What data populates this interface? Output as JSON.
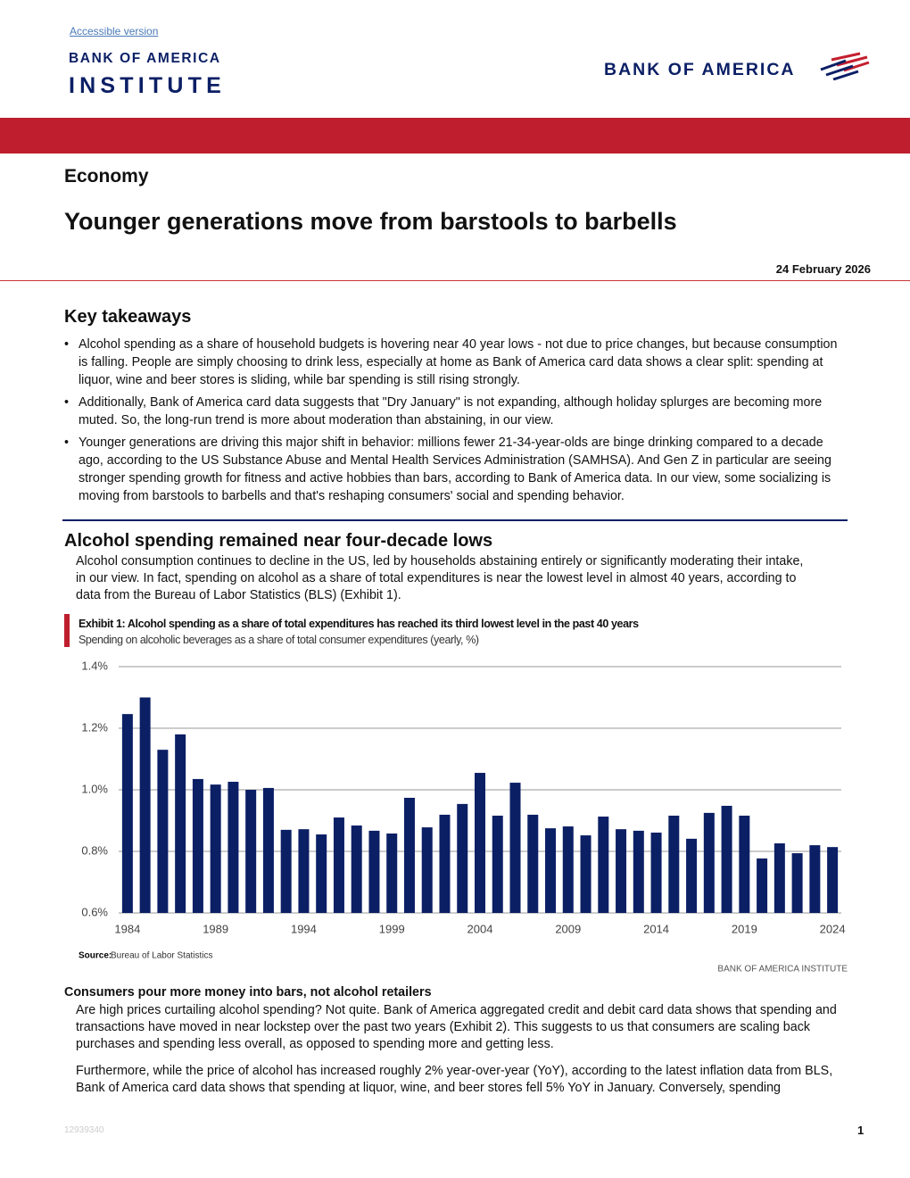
{
  "header": {
    "link": "Accessible version",
    "institute_logo": [
      "BANK OF AMERICA",
      "INSTITUTE"
    ],
    "brand": "BANK OF AMERICA"
  },
  "section": "Economy",
  "title": "Younger generations move from barstools to barbells",
  "date": "24 February 2026",
  "takeaways": {
    "heading": "Key takeaways",
    "items": [
      "Alcohol spending as a share of household budgets is hovering near 40 year lows - not due to price changes, but because consumption is falling. People are simply choosing to drink less, especially at home as Bank of America card data shows a clear split: spending at liquor, wine and beer stores is sliding, while bar spending is still rising strongly.",
      "Additionally, Bank of America card data suggests that \"Dry January\" is not expanding, although holiday splurges are becoming more muted. So, the long-run trend is more about moderation than abstaining, in our view.",
      "Younger generations are driving this major shift in behavior: millions fewer 21-34-year-olds are binge drinking compared to a decade ago, according to the US Substance Abuse and Mental Health Services Administration (SAMHSA). And Gen Z in particular are seeing stronger spending growth for fitness and active hobbies than bars, according to Bank of America data. In our view, some socializing is moving from barstools to barbells and that's reshaping consumers' social and spending behavior."
    ]
  },
  "section1": {
    "heading": "Alcohol spending remained near four-decade lows",
    "body": "Alcohol consumption continues to decline in the US, led by households abstaining entirely or significantly moderating their intake, in our view. In fact, spending on alcohol as a share of total expenditures is near the lowest level in almost 40 years, according to data from the Bureau of Labor Statistics (BLS) (Exhibit 1)."
  },
  "chart_data": {
    "type": "bar",
    "title": "Exhibit 1: Alcohol spending as a share of total expenditures has reached its third lowest level in the past 40 years",
    "subtitle": "Spending on alcoholic beverages as a share of total consumer expenditures (yearly, %)",
    "categories": [
      "1984",
      null,
      null,
      null,
      null,
      "1989",
      null,
      null,
      null,
      null,
      "1994",
      null,
      null,
      null,
      null,
      "1999",
      null,
      null,
      null,
      null,
      "2004",
      null,
      null,
      null,
      null,
      "2009",
      null,
      null,
      null,
      null,
      "2014",
      null,
      null,
      null,
      null,
      "2019",
      null,
      null,
      null,
      null,
      "2024"
    ],
    "values": [
      1.246,
      1.3,
      1.13,
      1.18,
      1.035,
      1.017,
      1.026,
      1.0,
      1.006,
      0.87,
      0.872,
      0.855,
      0.91,
      0.884,
      0.867,
      0.858,
      0.974,
      0.878,
      0.919,
      0.954,
      1.055,
      0.916,
      1.023,
      0.919,
      0.875,
      0.881,
      0.852,
      0.913,
      0.872,
      0.867,
      0.861,
      0.916,
      0.841,
      0.925,
      0.948,
      0.916,
      0.777,
      0.826,
      0.794,
      0.82,
      0.814
    ],
    "color": "#0b1f65",
    "ylim": [
      0.6,
      1.4
    ],
    "yticks": [
      {
        "value": 0.6,
        "label": "0.6%"
      },
      {
        "value": 0.8,
        "label": "0.8%"
      },
      {
        "value": 1.0,
        "label": "1.0%"
      },
      {
        "value": 1.2,
        "label": "1.2%"
      },
      {
        "value": 1.4,
        "label": "1.4%"
      }
    ],
    "grid": true,
    "source_label": "Source:",
    "source": "Bureau of Labor Statistics",
    "credit": "BANK OF AMERICA INSTITUTE"
  },
  "section2": {
    "heading": "Consumers pour more money into bars, not alcohol retailers",
    "paragraphs": [
      "Are high prices curtailing alcohol spending? Not quite. Bank of America aggregated credit and debit card data shows that spending and transactions have moved in near lockstep over the past two years (Exhibit 2). This suggests to us that consumers are scaling back purchases and spending less overall, as opposed to spending more and getting less.",
      "Furthermore, while the price of alcohol has increased roughly 2% year-over-year (YoY), according to the latest inflation data from BLS, Bank of America card data shows that spending at liquor, wine, and beer stores fell 5% YoY in January. Conversely, spending"
    ]
  },
  "footer": {
    "id": "12939340",
    "page": 1
  }
}
